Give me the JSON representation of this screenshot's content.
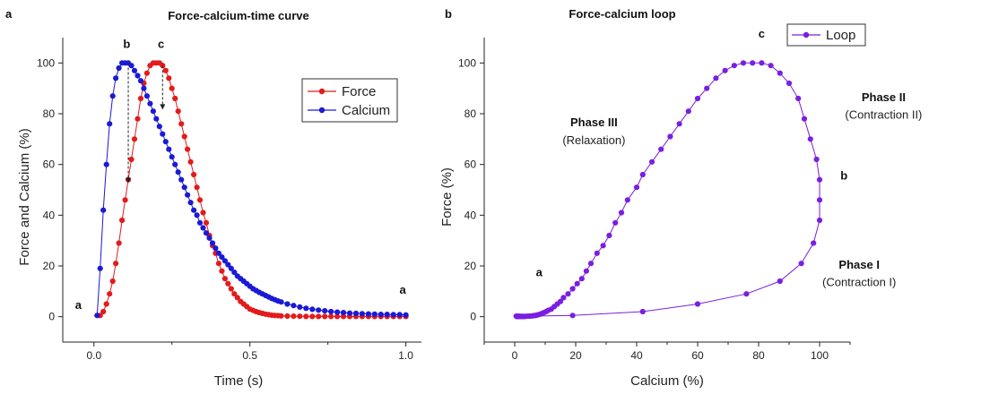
{
  "chart_data": [
    {
      "panel": "a",
      "type": "line",
      "title": "Force-calcium-time curve",
      "xlabel": "Time (s)",
      "ylabel": "Force and Calcium (%)",
      "xlim": [
        -0.1,
        1.05
      ],
      "ylim": [
        -10,
        110
      ],
      "xticks": [
        "0.0",
        "0.5",
        "1.0"
      ],
      "yticks": [
        "0",
        "20",
        "40",
        "60",
        "80",
        "100"
      ],
      "legend_position": "top-right",
      "series": [
        {
          "name": "Force",
          "color": "#e31b1b",
          "x": [
            0.02,
            0.03,
            0.04,
            0.05,
            0.06,
            0.07,
            0.08,
            0.09,
            0.1,
            0.11,
            0.12,
            0.13,
            0.14,
            0.15,
            0.16,
            0.17,
            0.18,
            0.19,
            0.2,
            0.21,
            0.22,
            0.23,
            0.24,
            0.25,
            0.26,
            0.27,
            0.28,
            0.29,
            0.3,
            0.31,
            0.32,
            0.33,
            0.34,
            0.35,
            0.36,
            0.37,
            0.38,
            0.39,
            0.4,
            0.41,
            0.42,
            0.43,
            0.44,
            0.45,
            0.46,
            0.47,
            0.48,
            0.49,
            0.5,
            0.51,
            0.52,
            0.53,
            0.54,
            0.55,
            0.56,
            0.57,
            0.58,
            0.59,
            0.6,
            0.62,
            0.64,
            0.66,
            0.68,
            0.7,
            0.72,
            0.74,
            0.76,
            0.78,
            0.8,
            0.82,
            0.84,
            0.86,
            0.88,
            0.9,
            0.92,
            0.94,
            0.96,
            0.98,
            1.0
          ],
          "y": [
            0.5,
            2,
            5,
            9,
            14,
            21,
            29,
            38,
            46,
            54,
            62,
            70,
            78,
            86,
            92,
            96,
            99,
            100,
            100,
            100,
            99,
            97,
            94,
            90,
            86,
            81,
            76,
            71,
            66,
            61,
            56,
            51,
            46,
            41,
            37,
            32,
            28,
            25,
            21,
            18,
            15,
            13,
            11,
            9,
            7.5,
            6,
            5,
            4,
            3,
            2.5,
            2,
            1.6,
            1.3,
            1,
            0.8,
            0.6,
            0.5,
            0.4,
            0.3,
            0.25,
            0.2,
            0.15,
            0.1,
            0.1,
            0.1,
            0.1,
            0.1,
            0.1,
            0.1,
            0.1,
            0.1,
            0.1,
            0.1,
            0.1,
            0.1,
            0.1,
            0.1,
            0.1,
            0.1
          ]
        },
        {
          "name": "Calcium",
          "color": "#1a1ad6",
          "x": [
            0.01,
            0.02,
            0.03,
            0.04,
            0.05,
            0.06,
            0.07,
            0.08,
            0.09,
            0.1,
            0.11,
            0.12,
            0.13,
            0.14,
            0.15,
            0.16,
            0.17,
            0.18,
            0.19,
            0.2,
            0.21,
            0.22,
            0.23,
            0.24,
            0.25,
            0.26,
            0.27,
            0.28,
            0.29,
            0.3,
            0.31,
            0.32,
            0.33,
            0.34,
            0.35,
            0.36,
            0.37,
            0.38,
            0.39,
            0.4,
            0.41,
            0.42,
            0.43,
            0.44,
            0.45,
            0.46,
            0.47,
            0.48,
            0.49,
            0.5,
            0.51,
            0.52,
            0.53,
            0.54,
            0.55,
            0.56,
            0.57,
            0.58,
            0.59,
            0.6,
            0.62,
            0.64,
            0.66,
            0.68,
            0.7,
            0.72,
            0.74,
            0.76,
            0.78,
            0.8,
            0.82,
            0.84,
            0.86,
            0.88,
            0.9,
            0.92,
            0.94,
            0.96,
            0.98,
            1.0
          ],
          "y": [
            0.5,
            19,
            42,
            60,
            76,
            87,
            94,
            98,
            100,
            100,
            100,
            99,
            97,
            95,
            93,
            90,
            87,
            84,
            81,
            78,
            75,
            72,
            69,
            66,
            63,
            60,
            57,
            54,
            51,
            48,
            45,
            42,
            40,
            37,
            35,
            33,
            31,
            29,
            27,
            25,
            23.5,
            22,
            20.5,
            19,
            17.5,
            16,
            15,
            14,
            13,
            12,
            11,
            10.3,
            9.6,
            9,
            8.4,
            7.8,
            7.2,
            6.7,
            6.2,
            5.8,
            5,
            4.4,
            3.8,
            3.3,
            2.9,
            2.6,
            2.3,
            2,
            1.8,
            1.6,
            1.4,
            1.3,
            1.2,
            1.1,
            1,
            0.9,
            0.9,
            0.8,
            0.8,
            0.7
          ]
        }
      ],
      "annotations": [
        {
          "text": "a",
          "x": -0.05,
          "y": 3
        },
        {
          "text": "b",
          "x": 0.105,
          "y": 106
        },
        {
          "text": "c",
          "x": 0.215,
          "y": 106
        },
        {
          "text": "a",
          "x": 0.99,
          "y": 9
        }
      ],
      "guide_lines": [
        {
          "x": 0.11,
          "y_from": 53,
          "y_to": 100
        },
        {
          "x": 0.22,
          "y_from": 82,
          "y_to": 100
        }
      ]
    },
    {
      "panel": "b",
      "type": "line",
      "title": "Force-calcium loop",
      "xlabel": "Calcium (%)",
      "ylabel": "Force (%)",
      "xlim": [
        -10,
        110
      ],
      "ylim": [
        -10,
        110
      ],
      "xticks": [
        "0",
        "20",
        "40",
        "60",
        "80",
        "100"
      ],
      "yticks": [
        "0",
        "20",
        "40",
        "60",
        "80",
        "100"
      ],
      "legend_position": "top-center",
      "series": [
        {
          "name": "Loop",
          "color": "#7a1fe0",
          "x": [
            0.5,
            19,
            42,
            60,
            76,
            87,
            94,
            98,
            100,
            100,
            100,
            99,
            97,
            95,
            93,
            90,
            87,
            84,
            81,
            78,
            75,
            72,
            69,
            66,
            63,
            60,
            57,
            54,
            51,
            48,
            45,
            42,
            40,
            37,
            35,
            33,
            31,
            29,
            27,
            25,
            23.5,
            22,
            20.5,
            19,
            17.5,
            16,
            15,
            14,
            13,
            12,
            11,
            10.3,
            9.6,
            9,
            8.4,
            7.8,
            7.2,
            6.7,
            6.2,
            5.8,
            5,
            4.4,
            3.8,
            3.3,
            2.9,
            2.6,
            2.3,
            2,
            1.8,
            1.6,
            1.4,
            1.3,
            1.2,
            1.1,
            1,
            0.9,
            0.9,
            0.8,
            0.8,
            0.7
          ],
          "y": [
            0.2,
            0.5,
            2,
            5,
            9,
            14,
            21,
            29,
            38,
            46,
            54,
            62,
            70,
            78,
            86,
            92,
            96,
            99,
            100,
            100,
            100,
            99,
            97,
            94,
            90,
            86,
            81,
            76,
            71,
            66,
            61,
            56,
            51,
            46,
            41,
            37,
            32,
            28,
            25,
            21,
            18,
            15,
            13,
            11,
            9,
            7.5,
            6,
            5,
            4,
            3,
            2.5,
            2,
            1.6,
            1.3,
            1,
            0.8,
            0.6,
            0.5,
            0.4,
            0.3,
            0.25,
            0.2,
            0.15,
            0.1,
            0.1,
            0.1,
            0.1,
            0.1,
            0.1,
            0.1,
            0.1,
            0.1,
            0.1,
            0.1,
            0.1,
            0.1,
            0.1,
            0.1,
            0.1,
            0.1
          ]
        }
      ],
      "annotations": [
        {
          "text": "c",
          "x": 81,
          "y": 110,
          "bold": true
        },
        {
          "text": "b",
          "x": 108,
          "y": 54,
          "bold": true
        },
        {
          "text": "a",
          "x": 8,
          "y": 16,
          "bold": true
        },
        {
          "text": "Phase III",
          "x": 26,
          "y": 75,
          "bold": true
        },
        {
          "text": "(Relaxation)",
          "x": 26,
          "y": 68,
          "bold": false
        },
        {
          "text": "Phase II",
          "x": 121,
          "y": 85,
          "bold": true
        },
        {
          "text": "(Contraction II)",
          "x": 121,
          "y": 78,
          "bold": false
        },
        {
          "text": "Phase I",
          "x": 113,
          "y": 19,
          "bold": true
        },
        {
          "text": "(Contraction I)",
          "x": 113,
          "y": 12,
          "bold": false
        }
      ]
    }
  ]
}
